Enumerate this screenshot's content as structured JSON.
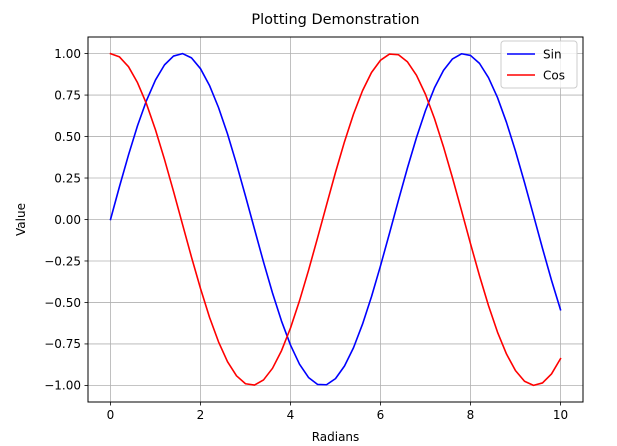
{
  "chart_data": {
    "type": "line",
    "title": "Plotting Demonstration",
    "xlabel": "Radians",
    "ylabel": "Value",
    "xlim": [
      -0.5,
      10.5
    ],
    "ylim": [
      -1.1,
      1.1
    ],
    "xticks": [
      0,
      2,
      4,
      6,
      8,
      10
    ],
    "xtick_labels": [
      "0",
      "2",
      "4",
      "6",
      "8",
      "10"
    ],
    "yticks": [
      -1.0,
      -0.75,
      -0.5,
      -0.25,
      0.0,
      0.25,
      0.5,
      0.75,
      1.0
    ],
    "ytick_labels": [
      "−1.00",
      "−0.75",
      "−0.50",
      "−0.25",
      "0.00",
      "0.25",
      "0.50",
      "0.75",
      "1.00"
    ],
    "grid": true,
    "legend_position": "top-right",
    "x": [
      0.0,
      0.2,
      0.4,
      0.6,
      0.8,
      1.0,
      1.2,
      1.4,
      1.6,
      1.8,
      2.0,
      2.2,
      2.4,
      2.6,
      2.8,
      3.0,
      3.2,
      3.4,
      3.6,
      3.8,
      4.0,
      4.2,
      4.4,
      4.6,
      4.8,
      5.0,
      5.2,
      5.4,
      5.6,
      5.8,
      6.0,
      6.2,
      6.4,
      6.6,
      6.8,
      7.0,
      7.2,
      7.4,
      7.6,
      7.8,
      8.0,
      8.2,
      8.4,
      8.6,
      8.8,
      9.0,
      9.2,
      9.4,
      9.6,
      9.8,
      10.0
    ],
    "series": [
      {
        "name": "Sin",
        "color": "#0000ff",
        "values": [
          0.0,
          0.199,
          0.389,
          0.565,
          0.717,
          0.841,
          0.932,
          0.985,
          1.0,
          0.974,
          0.909,
          0.808,
          0.675,
          0.516,
          0.335,
          0.141,
          -0.058,
          -0.256,
          -0.443,
          -0.612,
          -0.757,
          -0.872,
          -0.952,
          -0.994,
          -0.996,
          -0.959,
          -0.883,
          -0.773,
          -0.631,
          -0.465,
          -0.279,
          -0.083,
          0.117,
          0.312,
          0.494,
          0.657,
          0.794,
          0.899,
          0.968,
          0.999,
          0.989,
          0.941,
          0.855,
          0.735,
          0.585,
          0.412,
          0.223,
          0.025,
          -0.174,
          -0.366,
          -0.544
        ]
      },
      {
        "name": "Cos",
        "color": "#ff0000",
        "values": [
          1.0,
          0.98,
          0.921,
          0.825,
          0.697,
          0.54,
          0.362,
          0.17,
          -0.029,
          -0.227,
          -0.416,
          -0.589,
          -0.737,
          -0.857,
          -0.942,
          -0.99,
          -0.998,
          -0.967,
          -0.897,
          -0.791,
          -0.654,
          -0.49,
          -0.307,
          -0.112,
          0.087,
          0.284,
          0.469,
          0.635,
          0.776,
          0.886,
          0.96,
          0.997,
          0.993,
          0.95,
          0.869,
          0.754,
          0.608,
          0.438,
          0.251,
          0.054,
          -0.146,
          -0.339,
          -0.519,
          -0.679,
          -0.811,
          -0.911,
          -0.975,
          -0.9998,
          -0.985,
          -0.931,
          -0.839
        ]
      }
    ]
  }
}
